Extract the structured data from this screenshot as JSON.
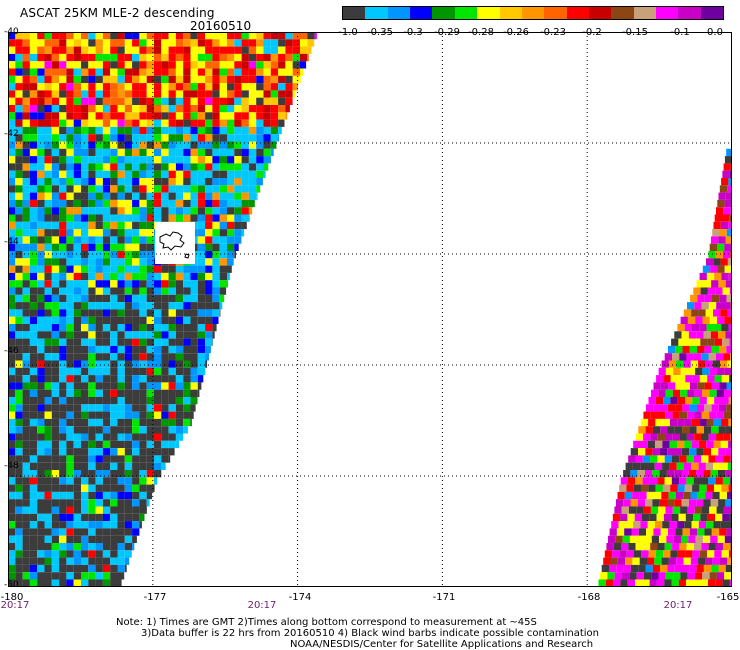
{
  "header": {
    "title": "ASCAT 25KM MLE-2 descending",
    "date": "20160510"
  },
  "colorbar": {
    "colors": [
      "#3c3c3c",
      "#00c8ff",
      "#0096ff",
      "#0000ff",
      "#009600",
      "#00e600",
      "#ffff00",
      "#ffc800",
      "#ff9600",
      "#ff6400",
      "#ff0000",
      "#c80000",
      "#8c4614",
      "#c8a07a",
      "#ff00ff",
      "#c800c8",
      "#6e00a0"
    ],
    "labels": [
      "-1.0",
      "-0.35",
      "-0.3",
      "-0.29",
      "-0.28",
      "-0.26",
      "-0.23",
      "-0.2",
      "-0.15",
      "-0.1",
      "0.0"
    ]
  },
  "axes": {
    "lat_labels": [
      "-40",
      "-42",
      "-44",
      "-46",
      "-48",
      "-50"
    ],
    "lon_labels": [
      "-180",
      "-177",
      "-174",
      "-171",
      "-168",
      "-165"
    ],
    "lat_range": [
      -50,
      -40
    ],
    "lon_range": [
      -180,
      -165
    ],
    "grid": "dotted"
  },
  "times": [
    "20:17",
    "20:17",
    "20:17"
  ],
  "notes": {
    "line1": "Note: 1) Times are GMT 2)Times along bottom correspond to measurement at ~45S",
    "line2": "3)Data buffer is 22 hrs from 20160510 4) Black wind barbs indicate possible contamination",
    "line3": "NOAA/NESDIS/Center for Satellite Applications and Research"
  },
  "chart_data": {
    "type": "heatmap",
    "title": "ASCAT 25KM MLE-2 descending",
    "date": "20160510",
    "xlim": [
      -180,
      -165
    ],
    "ylim": [
      -50,
      -40
    ],
    "swaths": [
      {
        "edge_lon_at_lat": [
          [
            -40,
            -173.6
          ],
          [
            -44,
            -175.3
          ],
          [
            -47,
            -176.2
          ],
          [
            -48,
            -176.9
          ],
          [
            -50,
            -177.7
          ]
        ]
      },
      {
        "edge_lon_at_lat": [
          [
            -42,
            -165.1
          ],
          [
            -44,
            -165.5
          ],
          [
            -46,
            -166.5
          ],
          [
            -48,
            -167.3
          ],
          [
            -50,
            -167.8
          ]
        ]
      }
    ]
  }
}
